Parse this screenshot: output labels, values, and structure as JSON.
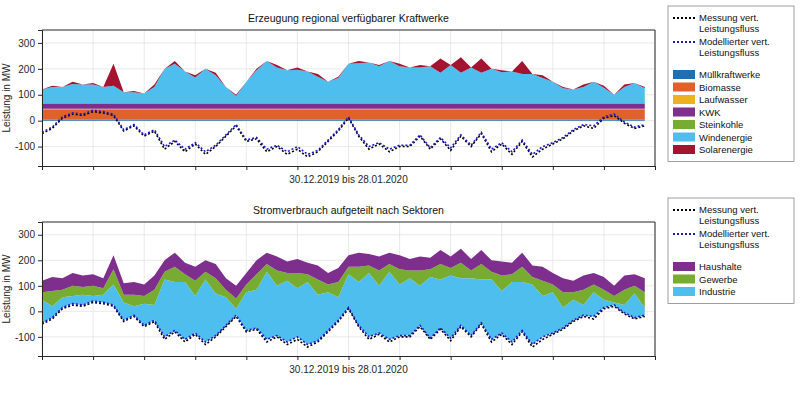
{
  "chart_data": [
    {
      "type": "area",
      "title": "Erzeugung regional verfügbarer Kraftwerke",
      "x_label": "30.12.2019 bis 28.01.2020",
      "y_label": "Leistung in MW",
      "x": [
        0,
        0.5,
        1,
        1.5,
        2,
        2.5,
        3,
        3.5,
        4,
        4.5,
        5,
        5.5,
        6,
        6.5,
        7,
        7.5,
        8,
        8.5,
        9,
        9.5,
        10,
        10.5,
        11,
        11.5,
        12,
        12.5,
        13,
        13.5,
        14,
        14.5,
        15,
        15.5,
        16,
        16.5,
        17,
        17.5,
        18,
        18.5,
        19,
        19.5,
        20,
        20.5,
        21,
        21.5,
        22,
        22.5,
        23,
        23.5,
        24,
        24.5,
        25,
        25.5,
        26,
        26.5,
        27,
        27.5,
        28,
        28.5,
        29,
        29.5
      ],
      "xlim": [
        0,
        30
      ],
      "xticks": [
        0,
        2.5,
        5,
        7.5,
        10,
        12.5,
        15,
        17.5,
        20,
        22.5,
        25,
        27.5,
        30
      ],
      "ylim": [
        -175,
        350
      ],
      "yticks": [
        -100,
        0,
        100,
        200,
        300
      ],
      "grid": true,
      "stacked": true,
      "legend": "right",
      "tick_labels": "y",
      "series": [
        {
          "name": "Messung vert. Leistungsfluss",
          "type": "line",
          "line_style": "dotted",
          "color": "#000000",
          "values": [
            -50,
            -30,
            10,
            25,
            20,
            35,
            30,
            20,
            -40,
            -20,
            -60,
            -40,
            -110,
            -80,
            -120,
            -90,
            -130,
            -100,
            -60,
            -20,
            -80,
            -70,
            -120,
            -100,
            -130,
            -110,
            -140,
            -120,
            -80,
            -40,
            10,
            -60,
            -110,
            -90,
            -120,
            -100,
            -100,
            -60,
            -110,
            -70,
            -115,
            -60,
            -100,
            -50,
            -120,
            -90,
            -130,
            -80,
            -140,
            -110,
            -90,
            -70,
            -40,
            -20,
            -30,
            10,
            20,
            -10,
            -30,
            -20
          ]
        },
        {
          "name": "Modellierter vert. Leistungsfluss",
          "type": "line",
          "line_style": "dotted",
          "color": "#1a1acc",
          "values": [
            -45,
            -25,
            15,
            30,
            25,
            40,
            35,
            25,
            -35,
            -15,
            -55,
            -35,
            -100,
            -75,
            -110,
            -85,
            -120,
            -95,
            -55,
            -15,
            -75,
            -65,
            -110,
            -95,
            -120,
            -100,
            -130,
            -115,
            -75,
            -35,
            15,
            -55,
            -100,
            -85,
            -110,
            -95,
            -95,
            -55,
            -105,
            -65,
            -105,
            -55,
            -95,
            -45,
            -110,
            -85,
            -120,
            -75,
            -130,
            -100,
            -85,
            -65,
            -35,
            -15,
            -20,
            15,
            25,
            -5,
            -25,
            -15
          ]
        },
        {
          "name": "Müllkraftwerke",
          "type": "area",
          "color": "#1f6fb4",
          "values": [
            4,
            4,
            4,
            4,
            4,
            4,
            4,
            4,
            4,
            4,
            4,
            4,
            4,
            4,
            4,
            4,
            4,
            4,
            4,
            4,
            4,
            4,
            4,
            4,
            4,
            4,
            4,
            4,
            4,
            4,
            4,
            4,
            4,
            4,
            4,
            4,
            4,
            4,
            4,
            4,
            4,
            4,
            4,
            4,
            4,
            4,
            4,
            4,
            4,
            4,
            4,
            4,
            4,
            4,
            4,
            4,
            4,
            4,
            4,
            4
          ]
        },
        {
          "name": "Biomasse",
          "type": "area",
          "color": "#e0622a",
          "values": [
            40,
            40,
            40,
            40,
            40,
            40,
            40,
            40,
            40,
            40,
            40,
            40,
            40,
            40,
            40,
            40,
            40,
            40,
            40,
            40,
            40,
            40,
            40,
            40,
            40,
            40,
            40,
            40,
            40,
            40,
            40,
            40,
            40,
            40,
            40,
            40,
            40,
            40,
            40,
            40,
            40,
            40,
            40,
            40,
            40,
            40,
            40,
            40,
            40,
            40,
            40,
            40,
            40,
            40,
            40,
            40,
            40,
            40,
            40,
            40
          ]
        },
        {
          "name": "Laufwasser",
          "type": "area",
          "color": "#edb120",
          "values": [
            2,
            2,
            2,
            2,
            2,
            2,
            2,
            2,
            2,
            2,
            2,
            2,
            2,
            2,
            2,
            2,
            2,
            2,
            2,
            2,
            2,
            2,
            2,
            2,
            2,
            2,
            2,
            2,
            2,
            2,
            2,
            2,
            2,
            2,
            2,
            2,
            2,
            2,
            2,
            2,
            2,
            2,
            2,
            2,
            2,
            2,
            2,
            2,
            2,
            2,
            2,
            2,
            2,
            2,
            2,
            2,
            2,
            2,
            2,
            2
          ]
        },
        {
          "name": "KWK",
          "type": "area",
          "color": "#7e2f8e",
          "values": [
            20,
            20,
            20,
            20,
            20,
            20,
            20,
            20,
            20,
            20,
            20,
            20,
            20,
            20,
            20,
            20,
            20,
            20,
            20,
            20,
            20,
            20,
            20,
            20,
            20,
            20,
            20,
            20,
            20,
            20,
            20,
            20,
            20,
            20,
            20,
            20,
            20,
            20,
            20,
            20,
            20,
            20,
            20,
            20,
            20,
            20,
            20,
            20,
            20,
            20,
            20,
            20,
            20,
            20,
            20,
            20,
            20,
            20,
            20,
            20
          ]
        },
        {
          "name": "Steinkohle",
          "type": "area",
          "color": "#77ac30",
          "values": [
            2,
            2,
            2,
            2,
            2,
            2,
            2,
            2,
            2,
            2,
            2,
            2,
            2,
            2,
            2,
            2,
            2,
            2,
            2,
            2,
            2,
            2,
            2,
            2,
            2,
            2,
            2,
            2,
            2,
            2,
            2,
            2,
            2,
            2,
            2,
            2,
            2,
            2,
            2,
            2,
            2,
            2,
            2,
            2,
            2,
            2,
            2,
            2,
            2,
            2,
            2,
            2,
            2,
            2,
            2,
            2,
            2,
            2,
            2,
            2
          ]
        },
        {
          "name": "Windenergie",
          "type": "area",
          "color": "#4dbeee",
          "values": [
            52,
            62,
            62,
            74,
            72,
            72,
            62,
            67,
            42,
            42,
            37,
            62,
            132,
            152,
            122,
            99,
            132,
            107,
            62,
            27,
            82,
            127,
            162,
            137,
            127,
            129,
            122,
            102,
            82,
            97,
            152,
            154,
            157,
            142,
            162,
            142,
            137,
            137,
            142,
            117,
            147,
            117,
            137,
            117,
            132,
            119,
            122,
            112,
            112,
            97,
            82,
            57,
            52,
            62,
            82,
            59,
            32,
            62,
            77,
            57
          ]
        },
        {
          "name": "Solarenergie",
          "type": "area",
          "color": "#a2142f",
          "values": [
            0,
            5,
            0,
            8,
            0,
            5,
            0,
            85,
            0,
            5,
            0,
            10,
            0,
            10,
            0,
            8,
            0,
            10,
            0,
            5,
            0,
            5,
            0,
            10,
            0,
            8,
            0,
            10,
            0,
            5,
            0,
            8,
            0,
            5,
            0,
            10,
            0,
            10,
            0,
            55,
            0,
            60,
            0,
            55,
            0,
            8,
            0,
            50,
            0,
            10,
            0,
            5,
            0,
            10,
            0,
            8,
            0,
            10,
            0,
            5
          ]
        }
      ]
    },
    {
      "type": "area",
      "title": "Stromverbrauch aufgeteilt nach Sektoren",
      "x_label": "30.12.2019 bis 28.01.2020",
      "y_label": "Leistung in MW",
      "x": [
        0,
        0.5,
        1,
        1.5,
        2,
        2.5,
        3,
        3.5,
        4,
        4.5,
        5,
        5.5,
        6,
        6.5,
        7,
        7.5,
        8,
        8.5,
        9,
        9.5,
        10,
        10.5,
        11,
        11.5,
        12,
        12.5,
        13,
        13.5,
        14,
        14.5,
        15,
        15.5,
        16,
        16.5,
        17,
        17.5,
        18,
        18.5,
        19,
        19.5,
        20,
        20.5,
        21,
        21.5,
        22,
        22.5,
        23,
        23.5,
        24,
        24.5,
        25,
        25.5,
        26,
        26.5,
        27,
        27.5,
        28,
        28.5,
        29,
        29.5
      ],
      "xlim": [
        0,
        30
      ],
      "xticks": [
        0,
        2.5,
        5,
        7.5,
        10,
        12.5,
        15,
        17.5,
        20,
        22.5,
        25,
        27.5,
        30
      ],
      "ylim": [
        -175,
        350
      ],
      "yticks": [
        -100,
        0,
        100,
        200,
        300
      ],
      "grid": true,
      "stacked": true,
      "legend": "right",
      "tick_labels": "y",
      "series": [
        {
          "name": "Messung vert. Leistungsfluss",
          "type": "line",
          "line_style": "dotted",
          "color": "#000000",
          "values": [
            -50,
            -30,
            10,
            25,
            20,
            35,
            30,
            20,
            -40,
            -20,
            -60,
            -40,
            -110,
            -80,
            -120,
            -90,
            -130,
            -100,
            -60,
            -20,
            -80,
            -70,
            -120,
            -100,
            -130,
            -110,
            -140,
            -120,
            -80,
            -40,
            10,
            -60,
            -110,
            -90,
            -120,
            -100,
            -100,
            -60,
            -110,
            -70,
            -115,
            -60,
            -100,
            -50,
            -120,
            -90,
            -130,
            -80,
            -140,
            -110,
            -90,
            -70,
            -40,
            -20,
            -30,
            10,
            20,
            -10,
            -30,
            -20
          ]
        },
        {
          "name": "Modellierter vert. Leistungsfluss",
          "type": "line",
          "line_style": "dotted",
          "color": "#1a1acc",
          "values": [
            -45,
            -25,
            15,
            30,
            25,
            40,
            35,
            25,
            -35,
            -15,
            -55,
            -35,
            -100,
            -75,
            -110,
            -85,
            -120,
            -95,
            -55,
            -15,
            -75,
            -65,
            -110,
            -95,
            -120,
            -100,
            -130,
            -115,
            -75,
            -35,
            15,
            -55,
            -100,
            -85,
            -110,
            -95,
            -95,
            -55,
            -105,
            -65,
            -105,
            -55,
            -95,
            -45,
            -110,
            -85,
            -120,
            -75,
            -130,
            -100,
            -85,
            -65,
            -35,
            -15,
            -20,
            15,
            25,
            -5,
            -25,
            -15
          ]
        },
        {
          "name": "Industrie",
          "type": "area",
          "color": "#4dbeee",
          "values": [
            90,
            45,
            40,
            30,
            40,
            20,
            30,
            80,
            70,
            35,
            85,
            60,
            225,
            190,
            225,
            145,
            245,
            165,
            110,
            25,
            150,
            150,
            265,
            195,
            240,
            190,
            245,
            180,
            150,
            90,
            130,
            170,
            250,
            185,
            265,
            200,
            225,
            155,
            240,
            190,
            245,
            185,
            225,
            170,
            235,
            165,
            235,
            190,
            235,
            160,
            160,
            80,
            80,
            40,
            95,
            30,
            10,
            30,
            95,
            30
          ]
        },
        {
          "name": "Gewerbe",
          "type": "area",
          "color": "#77ac30",
          "values": [
            30,
            60,
            30,
            40,
            30,
            40,
            25,
            60,
            30,
            45,
            30,
            60,
            30,
            60,
            30,
            60,
            30,
            60,
            30,
            40,
            30,
            60,
            30,
            60,
            30,
            60,
            30,
            60,
            30,
            60,
            30,
            60,
            30,
            60,
            30,
            60,
            30,
            60,
            30,
            60,
            30,
            60,
            30,
            60,
            30,
            60,
            30,
            60,
            30,
            60,
            30,
            60,
            30,
            60,
            30,
            40,
            25,
            60,
            30,
            60
          ]
        },
        {
          "name": "Haushalte",
          "type": "area",
          "color": "#7e2f8e",
          "values": [
            45,
            55,
            45,
            50,
            45,
            45,
            40,
            55,
            45,
            50,
            45,
            55,
            45,
            55,
            45,
            55,
            45,
            55,
            45,
            50,
            45,
            55,
            45,
            55,
            45,
            55,
            45,
            55,
            45,
            55,
            45,
            55,
            45,
            55,
            45,
            55,
            45,
            55,
            45,
            55,
            45,
            55,
            45,
            55,
            45,
            55,
            45,
            55,
            45,
            55,
            45,
            55,
            45,
            55,
            45,
            50,
            40,
            55,
            45,
            55
          ]
        }
      ]
    }
  ]
}
